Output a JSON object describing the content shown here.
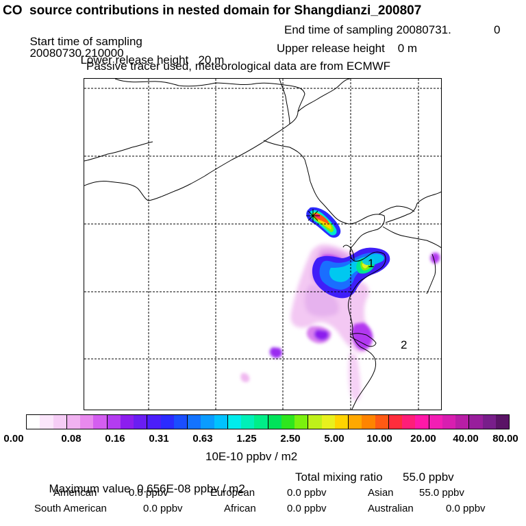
{
  "header": {
    "title": "CO  source contributions in nested domain for Shangdianzi_200807",
    "start_label": "Start time of sampling",
    "start_value": "20080730.210000",
    "end_label": "End time of sampling",
    "end_value": "20080731.",
    "end_extra": "0",
    "lower_label": "Lower release height",
    "lower_value": "20 m",
    "upper_label": "Upper release height",
    "upper_value": "0 m",
    "note": "Passive tracer used, meteorological data are from ECMWF"
  },
  "map": {
    "markers": [
      {
        "label": "1"
      },
      {
        "label": "2"
      }
    ],
    "station_icon": "asterisk-star-icon"
  },
  "colorbar": {
    "colors": [
      "#ffffff",
      "#fbe6fb",
      "#f6cdf6",
      "#f0b2f0",
      "#e889ee",
      "#d45ef0",
      "#b43cf0",
      "#8c1eee",
      "#6a1ef2",
      "#4b1efa",
      "#2b2bff",
      "#1a4eff",
      "#1373ff",
      "#0a9cff",
      "#00c2ff",
      "#00ecec",
      "#00f0b8",
      "#00ee88",
      "#00e35a",
      "#2ee61e",
      "#7bf00e",
      "#bff01a",
      "#e8f01e",
      "#ffd400",
      "#ffa800",
      "#ff8400",
      "#ff5a14",
      "#ff2d3c",
      "#ff1e78",
      "#ff18a8",
      "#f21eb4",
      "#d81eb0",
      "#b81ea6",
      "#981e9c",
      "#781e8a",
      "#5a1466"
    ],
    "tick_labels": [
      "0.00",
      "0.08",
      "0.16",
      "0.31",
      "0.63",
      "1.25",
      "2.50",
      "5.00",
      "10.00",
      "20.00",
      "40.00",
      "80.00"
    ],
    "units": "10E-10 ppbv / m2"
  },
  "summary": {
    "max_label": "Maximum value",
    "max_value": "0.656E-08 ppbv / m2",
    "total_label": "Total mixing ratio",
    "total_value": "55.0 ppbv",
    "regions": [
      {
        "name": "American",
        "value": "0.0 ppbv"
      },
      {
        "name": "European",
        "value": "0.0 ppbv"
      },
      {
        "name": "Asian",
        "value": "55.0 ppbv"
      },
      {
        "name": "South American",
        "value": "0.0 ppbv"
      },
      {
        "name": "African",
        "value": "0.0 ppbv"
      },
      {
        "name": "Australian",
        "value": "0.0 ppbv"
      }
    ]
  }
}
